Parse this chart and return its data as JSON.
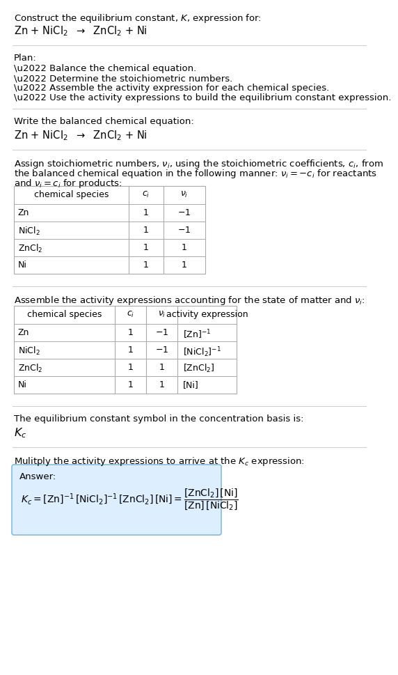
{
  "bg_color": "#ffffff",
  "text_color": "#000000",
  "grid_color": "#aaaaaa",
  "separator_color": "#cccccc",
  "answer_box_color": "#ddeeff",
  "answer_box_border": "#88bbdd",
  "sections": {
    "s1_line1": "Construct the equilibrium constant, $K$, expression for:",
    "s1_line2": "Zn + NiCl$_2$  $\\rightarrow$  ZnCl$_2$ + Ni",
    "s2_header": "Plan:",
    "s2_bullets": [
      "\\u2022 Balance the chemical equation.",
      "\\u2022 Determine the stoichiometric numbers.",
      "\\u2022 Assemble the activity expression for each chemical species.",
      "\\u2022 Use the activity expressions to build the equilibrium constant expression."
    ],
    "s3_header": "Write the balanced chemical equation:",
    "s3_eq": "Zn + NiCl$_2$  $\\rightarrow$  ZnCl$_2$ + Ni",
    "s4_intro1": "Assign stoichiometric numbers, $\\nu_i$, using the stoichiometric coefficients, $c_i$, from",
    "s4_intro2": "the balanced chemical equation in the following manner: $\\nu_i = -c_i$ for reactants",
    "s4_intro3": "and $\\nu_i = c_i$ for products:",
    "t1_headers": [
      "chemical species",
      "$c_i$",
      "$\\nu_i$"
    ],
    "t1_rows": [
      [
        "Zn",
        "1",
        "$-$1"
      ],
      [
        "NiCl$_2$",
        "1",
        "$-$1"
      ],
      [
        "ZnCl$_2$",
        "1",
        "1"
      ],
      [
        "Ni",
        "1",
        "1"
      ]
    ],
    "s5_intro": "Assemble the activity expressions accounting for the state of matter and $\\nu_i$:",
    "t2_headers": [
      "chemical species",
      "$c_i$",
      "$\\nu_i$",
      "activity expression"
    ],
    "t2_rows": [
      [
        "Zn",
        "1",
        "$-$1",
        "[Zn]$^{-1}$"
      ],
      [
        "NiCl$_2$",
        "1",
        "$-$1",
        "[NiCl$_2$]$^{-1}$"
      ],
      [
        "ZnCl$_2$",
        "1",
        "1",
        "[ZnCl$_2$]"
      ],
      [
        "Ni",
        "1",
        "1",
        "[Ni]"
      ]
    ],
    "s6_line1": "The equilibrium constant symbol in the concentration basis is:",
    "s6_kc": "$K_c$",
    "s7_intro": "Mulitply the activity expressions to arrive at the $K_c$ expression:",
    "s7_answer_label": "Answer:",
    "s7_kc_eq1": "$K_c = [\\mathrm{Zn}]^{-1}\\,[\\mathrm{NiCl_2}]^{-1}\\,[\\mathrm{ZnCl_2}]\\,[\\mathrm{Ni}] = \\dfrac{[\\mathrm{ZnCl_2}]\\,[\\mathrm{Ni}]}{[\\mathrm{Zn}]\\,[\\mathrm{NiCl_2}]}$"
  }
}
